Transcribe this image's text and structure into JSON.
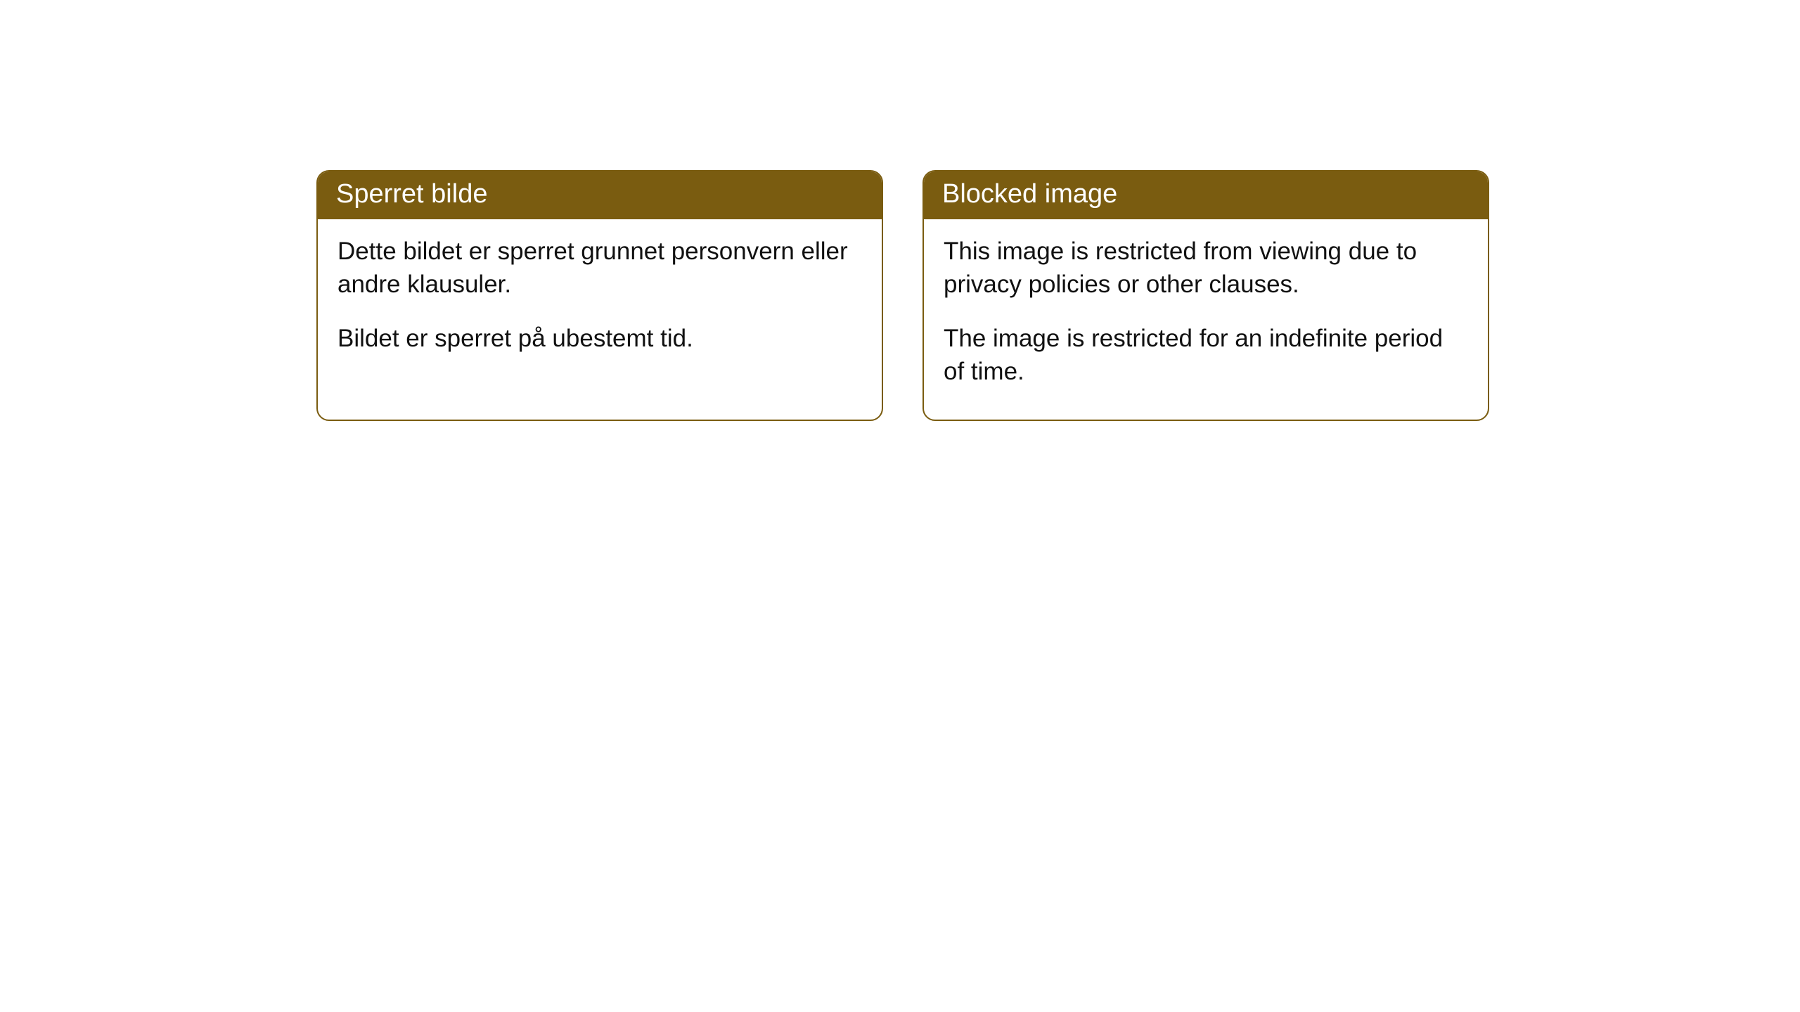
{
  "cards": [
    {
      "title": "Sperret bilde",
      "paragraph1": "Dette bildet er sperret grunnet personvern eller andre klausuler.",
      "paragraph2": "Bildet er sperret på ubestemt tid."
    },
    {
      "title": "Blocked image",
      "paragraph1": "This image is restricted from viewing due to privacy policies or other clauses.",
      "paragraph2": "The image is restricted for an indefinite period of time."
    }
  ],
  "style": {
    "header_background": "#7a5c10",
    "header_text_color": "#ffffff",
    "border_color": "#7a5c10",
    "body_background": "#ffffff",
    "body_text_color": "#111111",
    "border_radius": 18,
    "header_fontsize": 38,
    "body_fontsize": 35
  }
}
